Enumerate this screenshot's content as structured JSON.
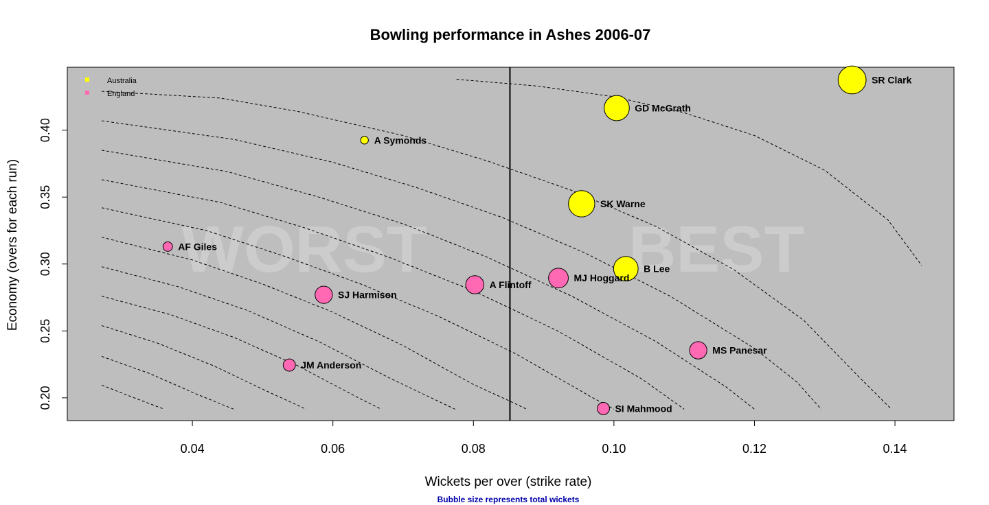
{
  "chart_data": {
    "type": "scatter",
    "title": "Bowling performance in Ashes 2006-07",
    "xlabel": "Wickets per over (strike rate)",
    "ylabel": "Economy (overs for each run)",
    "note": "Bubble size represents total wickets",
    "xlim": [
      0.0222,
      0.1484
    ],
    "ylim": [
      0.183,
      0.447
    ],
    "xticks": [
      {
        "value": 0.04,
        "label": "0.04"
      },
      {
        "value": 0.06,
        "label": "0.06"
      },
      {
        "value": 0.08,
        "label": "0.08"
      },
      {
        "value": 0.1,
        "label": "0.10"
      },
      {
        "value": 0.12,
        "label": "0.12"
      },
      {
        "value": 0.14,
        "label": "0.14"
      }
    ],
    "yticks": [
      {
        "value": 0.2,
        "label": "0.20"
      },
      {
        "value": 0.25,
        "label": "0.25"
      },
      {
        "value": 0.3,
        "label": "0.30"
      },
      {
        "value": 0.35,
        "label": "0.35"
      },
      {
        "value": 0.4,
        "label": "0.40"
      }
    ],
    "vline_x": 0.0852,
    "background": "#bebebe",
    "grid": false,
    "legend_position": "top-left",
    "series": [
      {
        "name": "Australia",
        "color": "#ffff00"
      },
      {
        "name": "England",
        "color": "#ff69b4"
      }
    ],
    "points": [
      {
        "label": "SR Clark",
        "x": 0.1339,
        "y": 0.4375,
        "size": 26,
        "team": "Australia"
      },
      {
        "label": "GD McGrath",
        "x": 0.1004,
        "y": 0.4165,
        "size": 21,
        "team": "Australia"
      },
      {
        "label": "A Symonds",
        "x": 0.0645,
        "y": 0.3925,
        "size": 2,
        "team": "Australia"
      },
      {
        "label": "SK Warne",
        "x": 0.0954,
        "y": 0.345,
        "size": 23,
        "team": "Australia"
      },
      {
        "label": "B Lee",
        "x": 0.1017,
        "y": 0.2965,
        "size": 20,
        "team": "Australia"
      },
      {
        "label": "AF Giles",
        "x": 0.0365,
        "y": 0.313,
        "size": 3,
        "team": "England"
      },
      {
        "label": "MJ Hoggard",
        "x": 0.0921,
        "y": 0.2895,
        "size": 13,
        "team": "England"
      },
      {
        "label": "A Flintoff",
        "x": 0.0802,
        "y": 0.2845,
        "size": 11,
        "team": "England"
      },
      {
        "label": "SJ Harmison",
        "x": 0.0587,
        "y": 0.277,
        "size": 10,
        "team": "England"
      },
      {
        "label": "MS Panesar",
        "x": 0.112,
        "y": 0.2355,
        "size": 10,
        "team": "England"
      },
      {
        "label": "JM Anderson",
        "x": 0.0538,
        "y": 0.2245,
        "size": 5,
        "team": "England"
      },
      {
        "label": "SI Mahmood",
        "x": 0.0985,
        "y": 0.192,
        "size": 5,
        "team": "England"
      }
    ],
    "contours": [
      [
        [
          0.0271,
          0.2095
        ],
        [
          0.0315,
          0.2005
        ],
        [
          0.036,
          0.1915
        ]
      ],
      [
        [
          0.0271,
          0.231
        ],
        [
          0.034,
          0.218
        ],
        [
          0.0405,
          0.203
        ],
        [
          0.0459,
          0.1915
        ]
      ],
      [
        [
          0.0271,
          0.254
        ],
        [
          0.035,
          0.241
        ],
        [
          0.043,
          0.224
        ],
        [
          0.051,
          0.204
        ],
        [
          0.0562,
          0.1915
        ]
      ],
      [
        [
          0.0271,
          0.276
        ],
        [
          0.037,
          0.262
        ],
        [
          0.046,
          0.245
        ],
        [
          0.055,
          0.224
        ],
        [
          0.064,
          0.199
        ],
        [
          0.0669,
          0.1915
        ]
      ],
      [
        [
          0.0271,
          0.298
        ],
        [
          0.038,
          0.283
        ],
        [
          0.048,
          0.265
        ],
        [
          0.058,
          0.242
        ],
        [
          0.068,
          0.215
        ],
        [
          0.0744,
          0.199
        ],
        [
          0.0774,
          0.1915
        ]
      ],
      [
        [
          0.0271,
          0.32
        ],
        [
          0.04,
          0.303
        ],
        [
          0.05,
          0.285
        ],
        [
          0.06,
          0.264
        ],
        [
          0.07,
          0.239
        ],
        [
          0.08,
          0.21
        ],
        [
          0.085,
          0.198
        ],
        [
          0.0876,
          0.1915
        ]
      ],
      [
        [
          0.0271,
          0.342
        ],
        [
          0.042,
          0.325
        ],
        [
          0.053,
          0.306
        ],
        [
          0.064,
          0.285
        ],
        [
          0.075,
          0.261
        ],
        [
          0.086,
          0.233
        ],
        [
          0.097,
          0.2
        ],
        [
          0.1,
          0.1915
        ]
      ],
      [
        [
          0.0271,
          0.363
        ],
        [
          0.044,
          0.346
        ],
        [
          0.056,
          0.327
        ],
        [
          0.068,
          0.305
        ],
        [
          0.08,
          0.28
        ],
        [
          0.092,
          0.25
        ],
        [
          0.104,
          0.214
        ],
        [
          0.11,
          0.1915
        ]
      ],
      [
        [
          0.0271,
          0.385
        ],
        [
          0.045,
          0.369
        ],
        [
          0.058,
          0.35
        ],
        [
          0.07,
          0.33
        ],
        [
          0.082,
          0.305
        ],
        [
          0.094,
          0.276
        ],
        [
          0.106,
          0.242
        ],
        [
          0.116,
          0.208
        ],
        [
          0.12,
          0.1915
        ]
      ],
      [
        [
          0.0271,
          0.407
        ],
        [
          0.046,
          0.393
        ],
        [
          0.06,
          0.376
        ],
        [
          0.072,
          0.357
        ],
        [
          0.084,
          0.335
        ],
        [
          0.096,
          0.308
        ],
        [
          0.108,
          0.276
        ],
        [
          0.12,
          0.237
        ],
        [
          0.126,
          0.212
        ],
        [
          0.1295,
          0.1915
        ]
      ],
      [
        [
          0.0271,
          0.429
        ],
        [
          0.044,
          0.424
        ],
        [
          0.055,
          0.414
        ],
        [
          0.07,
          0.396
        ],
        [
          0.082,
          0.377
        ],
        [
          0.094,
          0.355
        ],
        [
          0.106,
          0.328
        ],
        [
          0.117,
          0.296
        ],
        [
          0.127,
          0.258
        ],
        [
          0.135,
          0.215
        ],
        [
          0.1395,
          0.1915
        ]
      ],
      [
        [
          0.0776,
          0.438
        ],
        [
          0.089,
          0.433
        ],
        [
          0.1,
          0.425
        ],
        [
          0.11,
          0.413
        ],
        [
          0.12,
          0.396
        ],
        [
          0.13,
          0.37
        ],
        [
          0.139,
          0.333
        ],
        [
          0.1438,
          0.299
        ]
      ]
    ]
  },
  "watermarks": {
    "left": "WORST",
    "right": "BEST"
  }
}
